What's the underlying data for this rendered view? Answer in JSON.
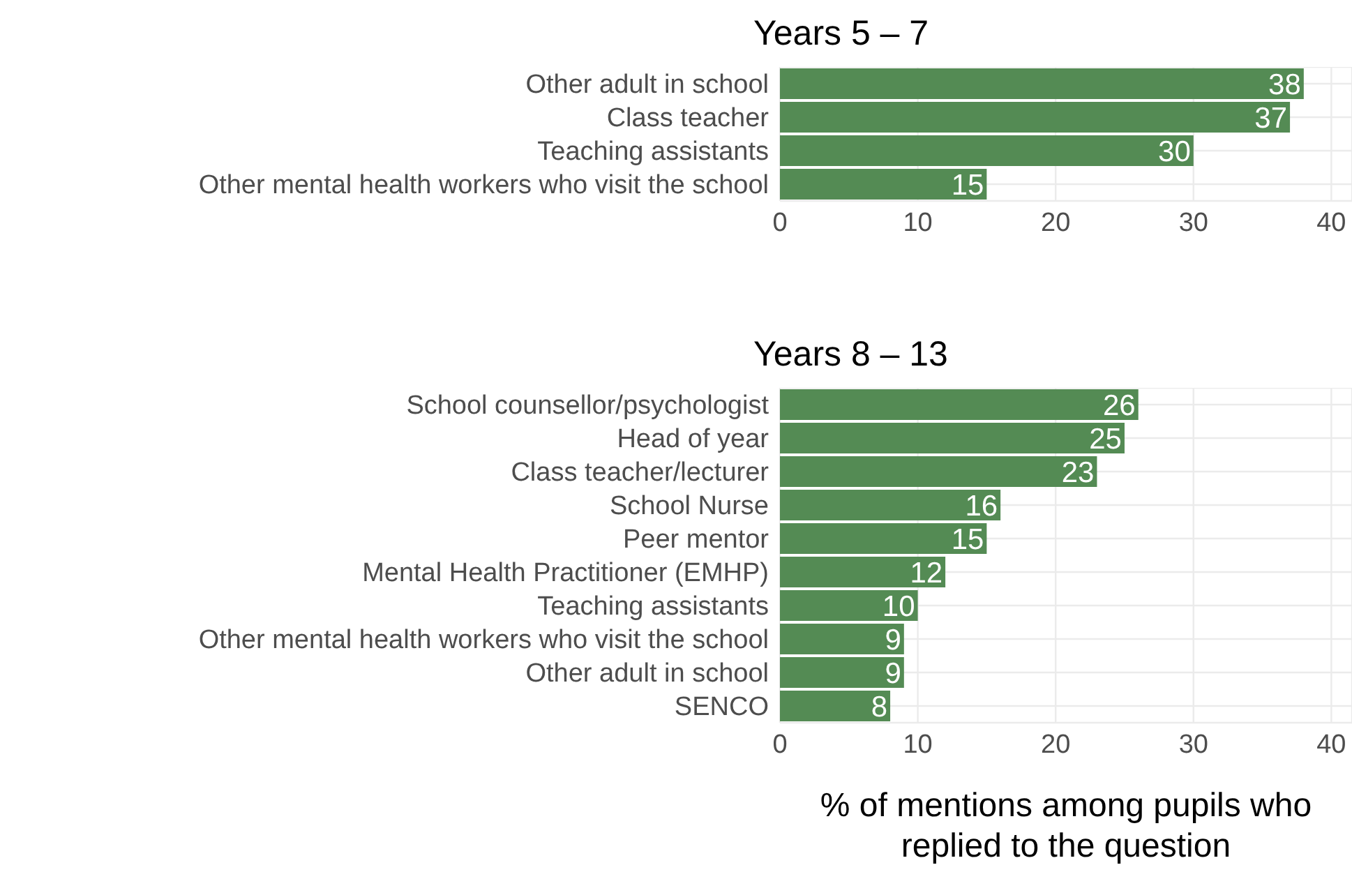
{
  "chart_data": [
    {
      "type": "bar",
      "orientation": "horizontal",
      "title": "Years 5 – 7",
      "categories": [
        "Other adult in school",
        "Class teacher",
        "Teaching assistants",
        "Other mental health workers who visit the school"
      ],
      "values": [
        38,
        37,
        30,
        15
      ],
      "color": "#548b54",
      "xlim": [
        0,
        41.5
      ],
      "xticks": [
        0,
        10,
        20,
        30,
        40
      ],
      "grid": true,
      "data_labels": true
    },
    {
      "type": "bar",
      "orientation": "horizontal",
      "title": "Years 8 – 13",
      "categories": [
        "School counsellor/psychologist",
        "Head of year",
        "Class teacher/lecturer",
        "School Nurse",
        "Peer mentor",
        "Mental Health Practitioner (EMHP)",
        "Teaching assistants",
        "Other mental health workers who visit the school",
        "Other adult in school",
        "SENCO"
      ],
      "values": [
        26,
        25,
        23,
        16,
        15,
        12,
        10,
        9,
        9,
        8
      ],
      "color": "#548b54",
      "xlim": [
        0,
        41.5
      ],
      "xticks": [
        0,
        10,
        20,
        30,
        40
      ],
      "grid": true,
      "data_labels": true,
      "xlabel": "% of mentions among pupils who replied to the question"
    }
  ]
}
